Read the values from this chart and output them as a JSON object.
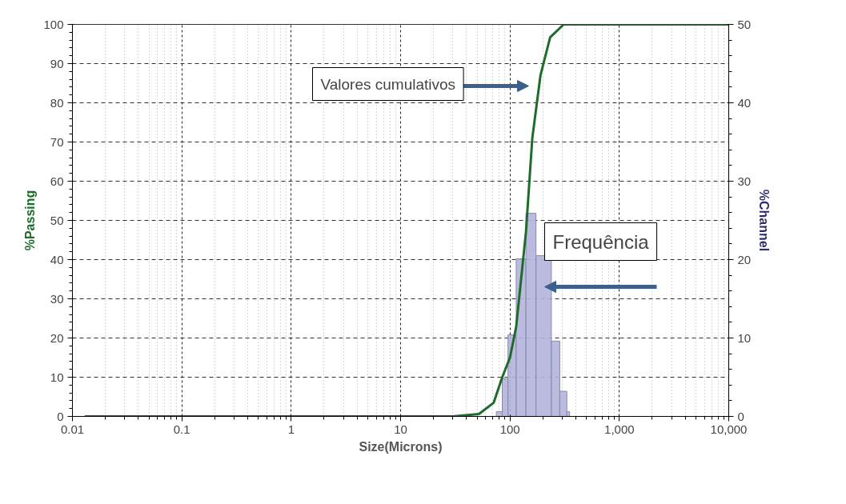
{
  "chart_data": {
    "type": "line",
    "xlabel": "Size(Microns)",
    "ylabel": "%Passing",
    "y2label": "%Channel",
    "log": "x",
    "xlim": [
      0.01,
      10000
    ],
    "xticks": [
      0.01,
      0.1,
      1,
      10,
      100,
      {
        "value": 1000,
        "label": "1,000"
      },
      {
        "value": 10000,
        "label": "10,000"
      }
    ],
    "ylim": [
      0,
      100
    ],
    "yticks": [
      0,
      10,
      20,
      30,
      40,
      50,
      60,
      70,
      80,
      90,
      100
    ],
    "y2lim": [
      0,
      50
    ],
    "y2ticks": [
      0,
      10,
      20,
      30,
      40,
      50
    ],
    "grid": true,
    "series": [
      {
        "type": "histogram",
        "axis": "y2",
        "color": "#b4b4dc",
        "bins": [
          75,
          85,
          96,
          114,
          140,
          173,
          239,
          285,
          331,
          351
        ],
        "values": [
          0.6,
          4.8,
          10.4,
          20.1,
          25.9,
          20.5,
          9.6,
          3.2,
          0.6
        ]
      },
      {
        "color": "#1e6b2c",
        "x": [
          0.013,
          1,
          30,
          52,
          71,
          85,
          100,
          114,
          140,
          160,
          190,
          233,
          310,
          400,
          1000,
          10000
        ],
        "values": [
          0,
          0,
          0,
          0.6,
          3.5,
          10,
          15,
          22.9,
          47,
          71,
          87,
          96.7,
          100,
          100,
          100,
          100
        ]
      }
    ],
    "annotations": [
      "Valores cumulativos",
      "Frequência"
    ]
  }
}
